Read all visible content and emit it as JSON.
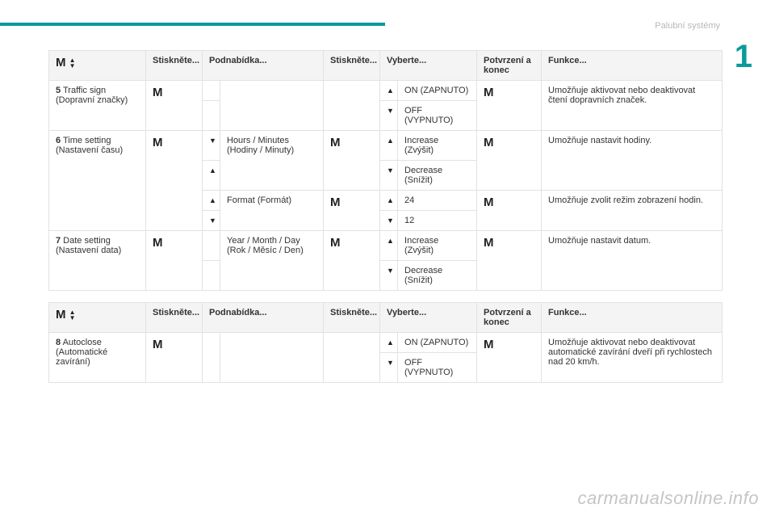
{
  "page": {
    "top_right_label": "Palubní systémy",
    "big_number": "1",
    "watermark": "carmanualsonline.info"
  },
  "headers": {
    "press": "Stiskněte...",
    "submenu": "Podnabídka...",
    "press2": "Stiskněte...",
    "select": "Vyberte...",
    "confirm": "Potvrzení a konec",
    "function": "Funkce..."
  },
  "glyphs": {
    "M": "M",
    "up": "▲",
    "down": "▼"
  },
  "table1": {
    "r5": {
      "num": "5",
      "label": " Traffic sign (Dopravní značky)",
      "on": "ON (ZAPNUTO)",
      "off": "OFF (VYPNUTO)",
      "func": "Umožňuje aktivovat nebo deaktivovat čtení dopravních značek."
    },
    "r6": {
      "num": "6",
      "label": " Time setting (Nastavení času)",
      "hours": "Hours / Minutes (Hodiny / Minuty)",
      "inc": "Increase (Zvýšit)",
      "dec": "Decrease (Snížit)",
      "format": "Format (Formát)",
      "v24": "24",
      "v12": "12",
      "func1": "Umožňuje nastavit hodiny.",
      "func2": "Umožňuje zvolit režim zobrazení hodin."
    },
    "r7": {
      "num": "7",
      "label": " Date setting (Nastavení data)",
      "ymd": "Year / Month / Day (Rok / Měsíc / Den)",
      "inc": "Increase (Zvýšit)",
      "dec": "Decrease (Snížit)",
      "func": "Umožňuje nastavit datum."
    }
  },
  "table2": {
    "r8": {
      "num": "8",
      "label": " Autoclose (Automatické zavírání)",
      "on": "ON (ZAPNUTO)",
      "off": "OFF (VYPNUTO)",
      "func": "Umožňuje aktivovat nebo deaktivovat automatické zavírání dveří při rychlostech nad 20 km/h."
    }
  }
}
